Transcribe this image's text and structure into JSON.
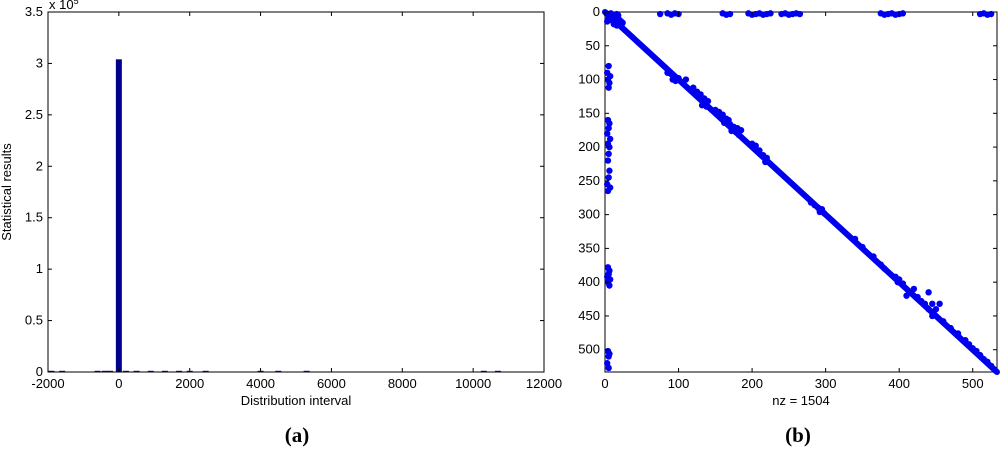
{
  "chart_data": [
    {
      "type": "bar",
      "panel_label": "(a)",
      "xlabel": "Distribution interval",
      "ylabel": "Statistical results",
      "y_exponent_label": "x 10",
      "y_exponent_power": "5",
      "xlim": [
        -2000,
        12000
      ],
      "ylim": [
        0,
        350000
      ],
      "xticks": [
        "-2000",
        "0",
        "2000",
        "4000",
        "6000",
        "8000",
        "10000",
        "12000"
      ],
      "xtick_values": [
        -2000,
        0,
        2000,
        4000,
        6000,
        8000,
        10000,
        12000
      ],
      "yticks": [
        "0",
        "0.5",
        "1",
        "1.5",
        "2",
        "2.5",
        "3",
        "3.5"
      ],
      "ytick_values": [
        0,
        50000,
        100000,
        150000,
        200000,
        250000,
        300000,
        350000
      ],
      "bar_color": "#00008b",
      "bars": [
        {
          "x": -1900,
          "value": 400
        },
        {
          "x": -1600,
          "value": 400
        },
        {
          "x": -600,
          "value": 300
        },
        {
          "x": -400,
          "value": 300
        },
        {
          "x": -250,
          "value": 400
        },
        {
          "x": 0,
          "value": 304000
        },
        {
          "x": 200,
          "value": 400
        },
        {
          "x": 500,
          "value": 400
        },
        {
          "x": 900,
          "value": 400
        },
        {
          "x": 1300,
          "value": 300
        },
        {
          "x": 1700,
          "value": 300
        },
        {
          "x": 2000,
          "value": 300
        },
        {
          "x": 2450,
          "value": 300
        },
        {
          "x": 4000,
          "value": 300
        },
        {
          "x": 4500,
          "value": 300
        },
        {
          "x": 5300,
          "value": 300
        },
        {
          "x": 10300,
          "value": 300
        },
        {
          "x": 10700,
          "value": 300
        }
      ]
    },
    {
      "type": "scatter",
      "panel_label": "(b)",
      "xlabel": "nz = 1504",
      "xlim": [
        0,
        533
      ],
      "ylim": [
        533,
        0
      ],
      "xticks": [
        "0",
        "100",
        "200",
        "300",
        "400",
        "500"
      ],
      "xtick_values": [
        0,
        100,
        200,
        300,
        400,
        500
      ],
      "yticks": [
        "0",
        "50",
        "100",
        "150",
        "200",
        "250",
        "300",
        "350",
        "400",
        "450",
        "500"
      ],
      "ytick_values": [
        0,
        50,
        100,
        150,
        200,
        250,
        300,
        350,
        400,
        450,
        500
      ],
      "marker_color": "#0000ee",
      "diagonal": {
        "from": 0,
        "to": 533
      },
      "points": [
        [
          2,
          2
        ],
        [
          4,
          3
        ],
        [
          6,
          5
        ],
        [
          8,
          2
        ],
        [
          10,
          4
        ],
        [
          12,
          6
        ],
        [
          14,
          8
        ],
        [
          16,
          3
        ],
        [
          18,
          5
        ],
        [
          20,
          12
        ],
        [
          22,
          14
        ],
        [
          24,
          16
        ],
        [
          5,
          10
        ],
        [
          8,
          12
        ],
        [
          3,
          14
        ],
        [
          12,
          18
        ],
        [
          16,
          20
        ],
        [
          6,
          8
        ],
        [
          10,
          9
        ],
        [
          75,
          3
        ],
        [
          85,
          2
        ],
        [
          90,
          4
        ],
        [
          95,
          2
        ],
        [
          100,
          3
        ],
        [
          160,
          2
        ],
        [
          165,
          4
        ],
        [
          170,
          3
        ],
        [
          195,
          2
        ],
        [
          200,
          4
        ],
        [
          205,
          3
        ],
        [
          210,
          2
        ],
        [
          215,
          4
        ],
        [
          220,
          3
        ],
        [
          225,
          2
        ],
        [
          240,
          3
        ],
        [
          245,
          2
        ],
        [
          250,
          4
        ],
        [
          255,
          3
        ],
        [
          260,
          2
        ],
        [
          265,
          3
        ],
        [
          375,
          2
        ],
        [
          380,
          4
        ],
        [
          385,
          3
        ],
        [
          390,
          2
        ],
        [
          395,
          4
        ],
        [
          400,
          3
        ],
        [
          405,
          2
        ],
        [
          510,
          3
        ],
        [
          515,
          2
        ],
        [
          520,
          4
        ],
        [
          525,
          3
        ],
        [
          5,
          80
        ],
        [
          3,
          90
        ],
        [
          7,
          95
        ],
        [
          4,
          100
        ],
        [
          6,
          105
        ],
        [
          5,
          112
        ],
        [
          4,
          160
        ],
        [
          6,
          165
        ],
        [
          5,
          172
        ],
        [
          3,
          180
        ],
        [
          7,
          188
        ],
        [
          4,
          195
        ],
        [
          6,
          200
        ],
        [
          5,
          210
        ],
        [
          4,
          220
        ],
        [
          6,
          235
        ],
        [
          5,
          245
        ],
        [
          3,
          255
        ],
        [
          7,
          260
        ],
        [
          4,
          265
        ],
        [
          4,
          378
        ],
        [
          6,
          383
        ],
        [
          5,
          388
        ],
        [
          3,
          392
        ],
        [
          7,
          396
        ],
        [
          4,
          400
        ],
        [
          6,
          405
        ],
        [
          4,
          502
        ],
        [
          6,
          506
        ],
        [
          5,
          510
        ],
        [
          3,
          520
        ],
        [
          5,
          527
        ],
        [
          85,
          90
        ],
        [
          90,
          92
        ],
        [
          95,
          96
        ],
        [
          100,
          98
        ],
        [
          92,
          100
        ],
        [
          96,
          102
        ],
        [
          110,
          100
        ],
        [
          120,
          112
        ],
        [
          125,
          118
        ],
        [
          130,
          122
        ],
        [
          135,
          128
        ],
        [
          140,
          132
        ],
        [
          132,
          138
        ],
        [
          138,
          140
        ],
        [
          150,
          145
        ],
        [
          155,
          148
        ],
        [
          160,
          152
        ],
        [
          165,
          158
        ],
        [
          162,
          164
        ],
        [
          168,
          160
        ],
        [
          170,
          166
        ],
        [
          175,
          170
        ],
        [
          180,
          172
        ],
        [
          178,
          178
        ],
        [
          172,
          176
        ],
        [
          185,
          175
        ],
        [
          182,
          182
        ],
        [
          200,
          195
        ],
        [
          205,
          198
        ],
        [
          210,
          205
        ],
        [
          215,
          212
        ],
        [
          220,
          216
        ],
        [
          218,
          222
        ],
        [
          280,
          282
        ],
        [
          285,
          286
        ],
        [
          290,
          290
        ],
        [
          295,
          292
        ],
        [
          292,
          296
        ],
        [
          298,
          298
        ],
        [
          340,
          336
        ],
        [
          350,
          348
        ],
        [
          365,
          362
        ],
        [
          375,
          374
        ],
        [
          380,
          380
        ],
        [
          395,
          392
        ],
        [
          400,
          396
        ],
        [
          405,
          402
        ],
        [
          398,
          400
        ],
        [
          410,
          420
        ],
        [
          420,
          410
        ],
        [
          425,
          422
        ],
        [
          430,
          428
        ],
        [
          435,
          432
        ],
        [
          440,
          440
        ],
        [
          440,
          415
        ],
        [
          445,
          450
        ],
        [
          450,
          440
        ],
        [
          455,
          432
        ],
        [
          445,
          432
        ],
        [
          460,
          458
        ],
        [
          470,
          468
        ],
        [
          480,
          476
        ],
        [
          490,
          486
        ],
        [
          495,
          492
        ],
        [
          500,
          498
        ],
        [
          505,
          502
        ],
        [
          510,
          508
        ],
        [
          515,
          514
        ],
        [
          520,
          518
        ],
        [
          525,
          524
        ],
        [
          530,
          530
        ]
      ]
    }
  ]
}
